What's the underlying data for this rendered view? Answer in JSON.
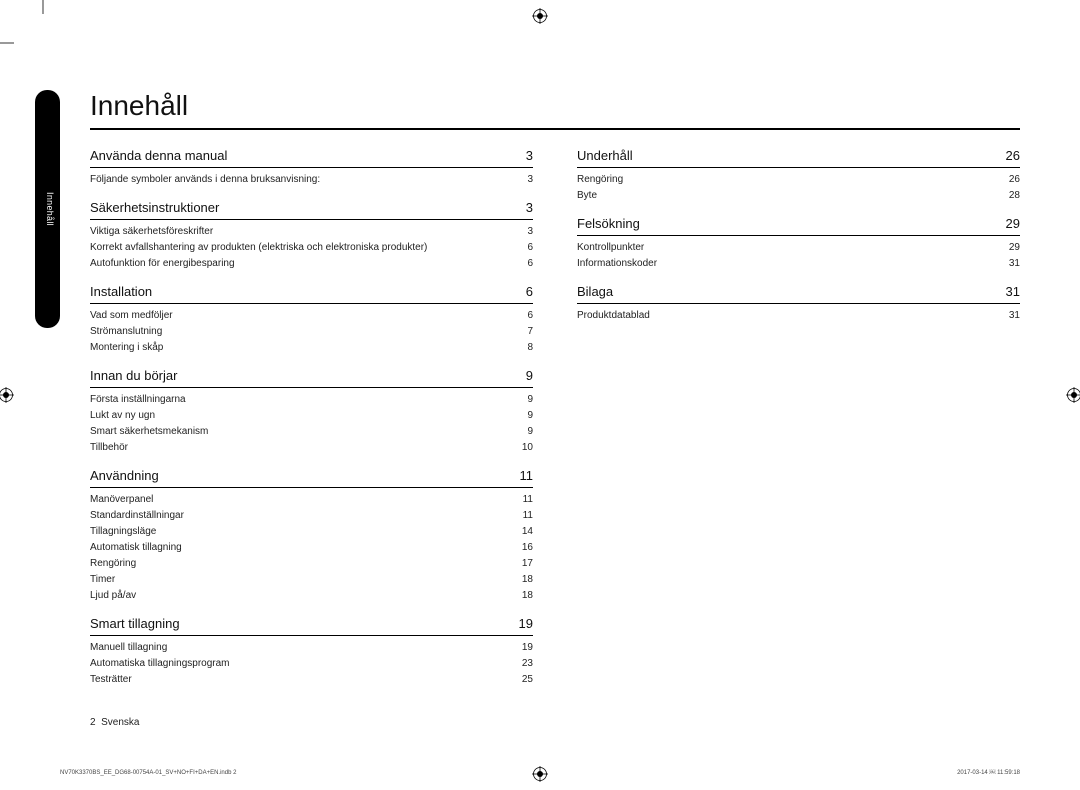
{
  "page_title": "Innehåll",
  "side_tab": "Innehåll",
  "footer": {
    "page_number": "2",
    "language": "Svenska"
  },
  "print": {
    "left": "NV70K3370BS_EE_DG68-00754A-01_SV+NO+FI+DA+EN.indb   2",
    "right": "2017-03-14   ￼ 11:59:18"
  },
  "left_column": [
    {
      "title": "Använda denna manual",
      "page": "3",
      "entries": [
        {
          "t": "Följande symboler används i denna bruksanvisning:",
          "p": "3"
        }
      ]
    },
    {
      "title": "Säkerhetsinstruktioner",
      "page": "3",
      "entries": [
        {
          "t": "Viktiga säkerhetsföreskrifter",
          "p": "3"
        },
        {
          "t": "Korrekt avfallshantering av produkten (elektriska och elektroniska produkter)",
          "p": "6"
        },
        {
          "t": "Autofunktion för energibesparing",
          "p": "6"
        }
      ]
    },
    {
      "title": "Installation",
      "page": "6",
      "entries": [
        {
          "t": "Vad som medföljer",
          "p": "6"
        },
        {
          "t": "Strömanslutning",
          "p": "7"
        },
        {
          "t": "Montering i skåp",
          "p": "8"
        }
      ]
    },
    {
      "title": "Innan du börjar",
      "page": "9",
      "entries": [
        {
          "t": "Första inställningarna",
          "p": "9"
        },
        {
          "t": "Lukt av ny ugn",
          "p": "9"
        },
        {
          "t": "Smart säkerhetsmekanism",
          "p": "9"
        },
        {
          "t": "Tillbehör",
          "p": "10"
        }
      ]
    },
    {
      "title": "Användning",
      "page": "11",
      "entries": [
        {
          "t": "Manöverpanel",
          "p": "11"
        },
        {
          "t": "Standardinställningar",
          "p": "11"
        },
        {
          "t": "Tillagningsläge",
          "p": "14"
        },
        {
          "t": "Automatisk tillagning",
          "p": "16"
        },
        {
          "t": "Rengöring",
          "p": "17"
        },
        {
          "t": "Timer",
          "p": "18"
        },
        {
          "t": "Ljud på/av",
          "p": "18"
        }
      ]
    },
    {
      "title": "Smart tillagning",
      "page": "19",
      "entries": [
        {
          "t": "Manuell tillagning",
          "p": "19"
        },
        {
          "t": "Automatiska tillagningsprogram",
          "p": "23"
        },
        {
          "t": "Testrätter",
          "p": "25"
        }
      ]
    }
  ],
  "right_column": [
    {
      "title": "Underhåll",
      "page": "26",
      "entries": [
        {
          "t": "Rengöring",
          "p": "26"
        },
        {
          "t": "Byte",
          "p": "28"
        }
      ]
    },
    {
      "title": "Felsökning",
      "page": "29",
      "entries": [
        {
          "t": "Kontrollpunkter",
          "p": "29"
        },
        {
          "t": "Informationskoder",
          "p": "31"
        }
      ]
    },
    {
      "title": "Bilaga",
      "page": "31",
      "entries": [
        {
          "t": "Produktdatablad",
          "p": "31"
        }
      ]
    }
  ]
}
